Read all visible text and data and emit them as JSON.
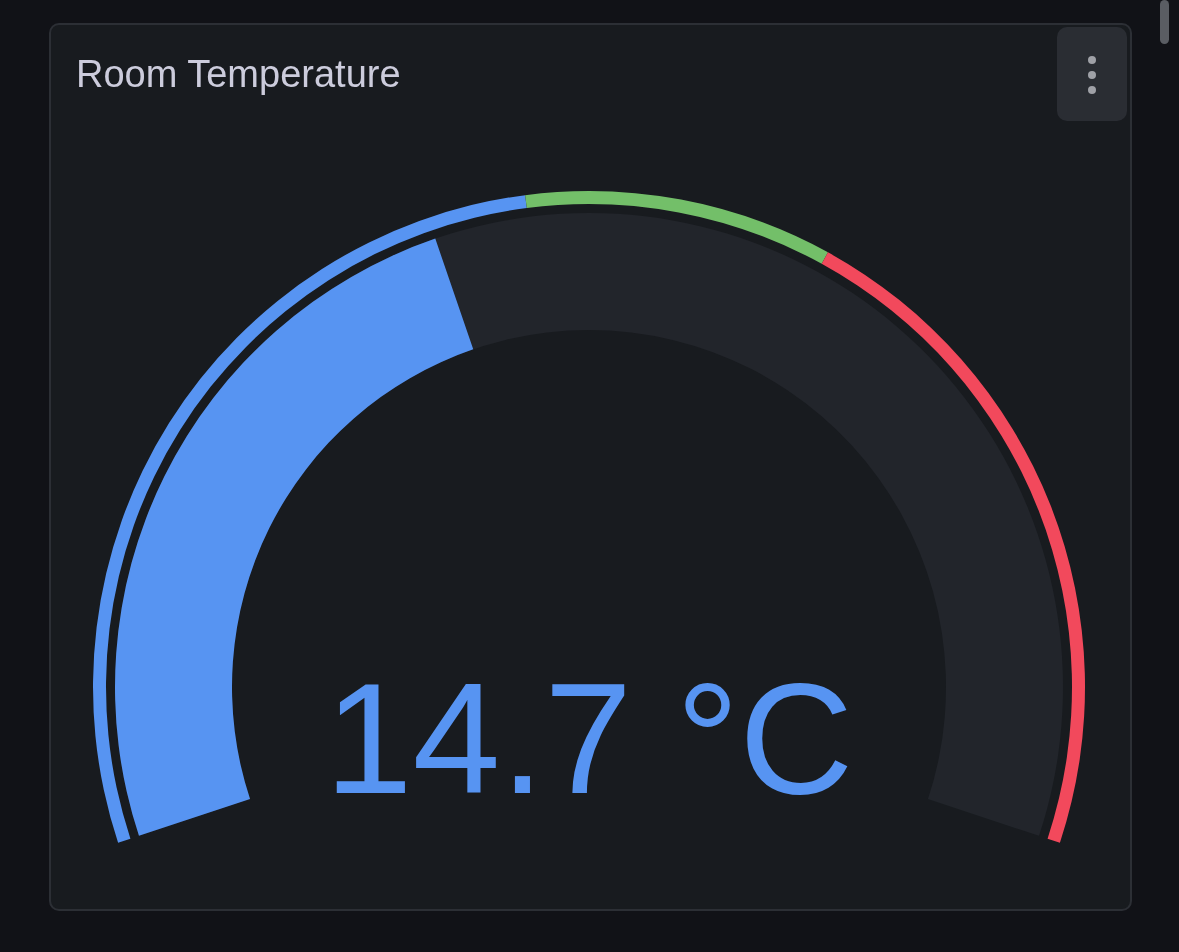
{
  "chart_data": {
    "type": "other",
    "title": "Room Temperature",
    "values": [
      14.7
    ],
    "value_labels": [
      "14.7 °C"
    ],
    "colors": [
      "#5794f2"
    ]
  }
}
